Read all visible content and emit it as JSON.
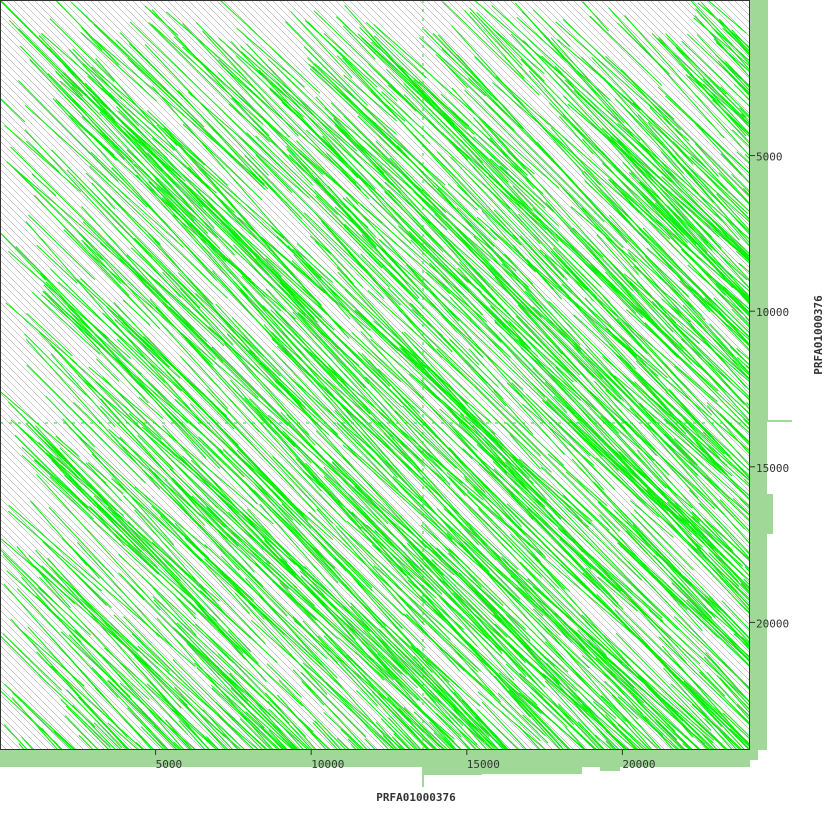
{
  "chart_data": {
    "type": "scatter",
    "subtype": "dot-plot self-alignment",
    "xlabel": "PRFA01000376",
    "ylabel": "PRFA01000376",
    "xlim": [
      0,
      24100
    ],
    "ylim": [
      0,
      24100
    ],
    "y_inverted": true,
    "x_ticks": [
      "5000",
      "10000",
      "15000",
      "20000"
    ],
    "y_ticks": [
      "5000",
      "10000",
      "15000",
      "20000"
    ],
    "x_tick_values": [
      5000,
      10000,
      15000,
      20000
    ],
    "y_tick_values": [
      5000,
      10000,
      15000,
      20000
    ],
    "grid": false,
    "colors": {
      "match": "#00ee00",
      "background_match": "#888888",
      "coverage": "#a0d898",
      "axis": "#333333"
    }
  }
}
